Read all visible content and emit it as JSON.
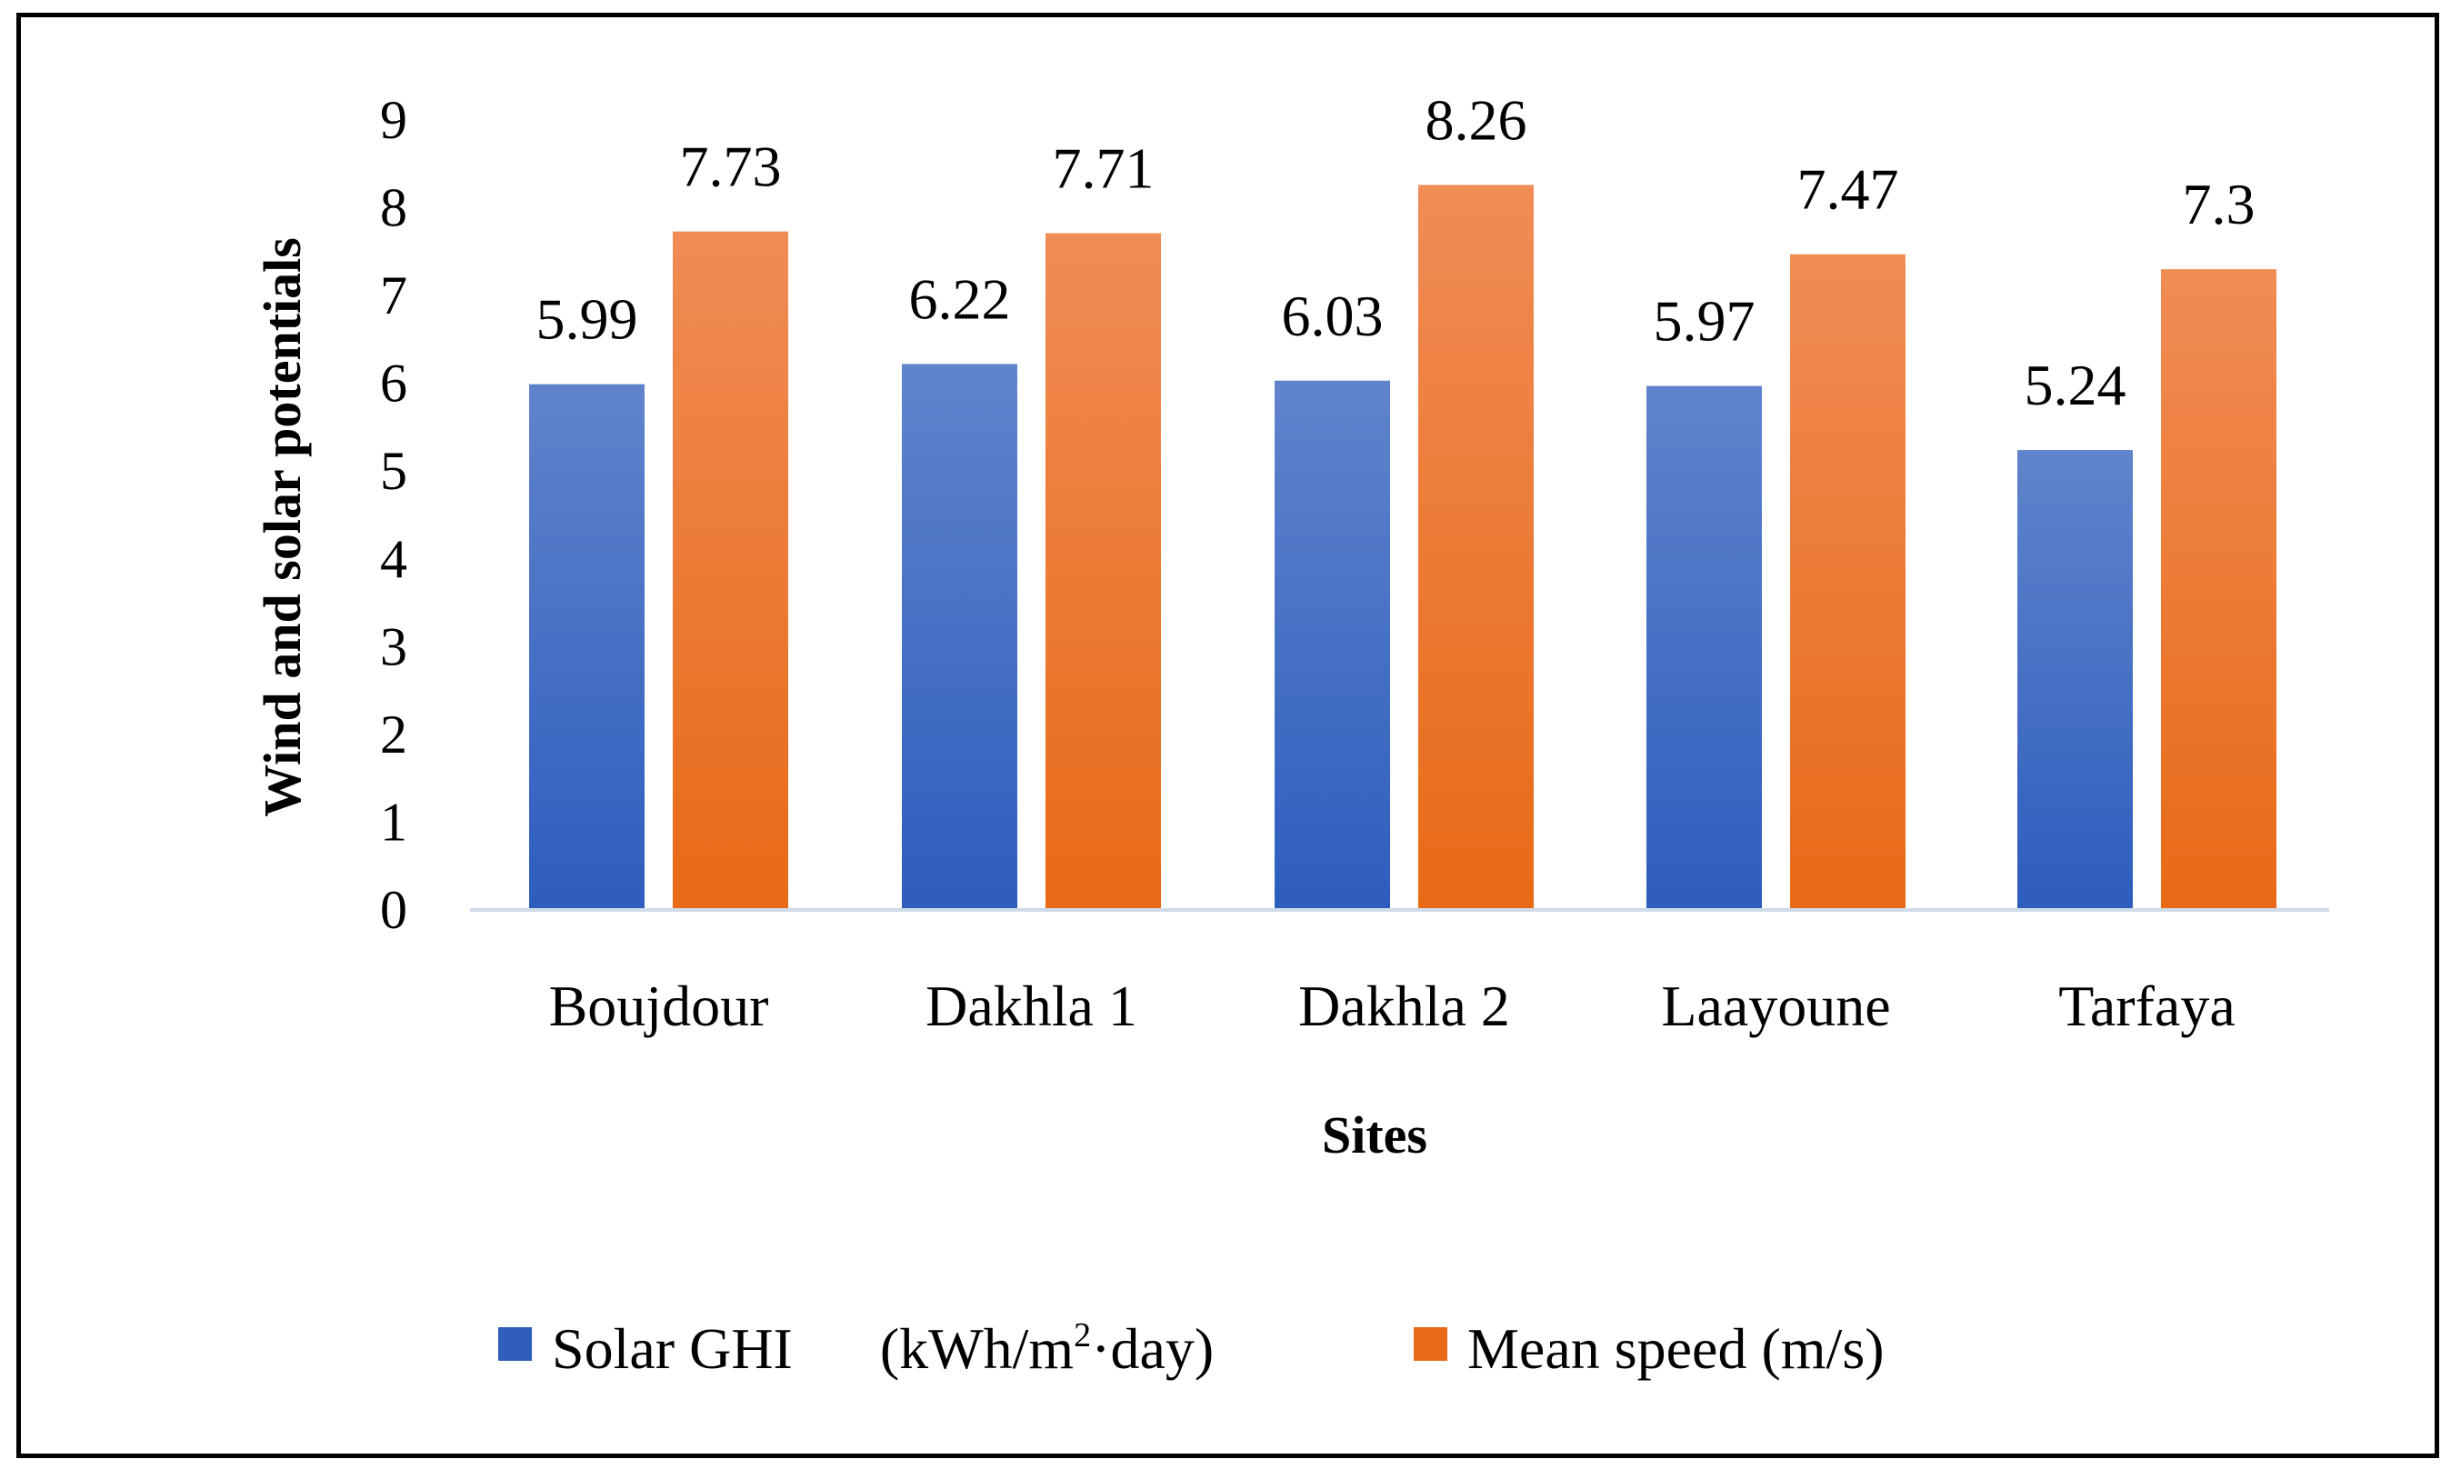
{
  "chart_data": {
    "type": "bar",
    "title": "",
    "xlabel": "Sites",
    "ylabel": "Wind and solar potentials",
    "ylim": [
      0,
      9
    ],
    "yticks": [
      "0",
      "1",
      "2",
      "3",
      "4",
      "5",
      "6",
      "7",
      "8",
      "9"
    ],
    "grid": false,
    "legend_position": "bottom",
    "categories": [
      "Boujdour",
      "Dakhla 1",
      "Dakhla 2",
      "Laayoune",
      "Tarfaya"
    ],
    "series": [
      {
        "name": "Solar GHI    (kWh/m²·day)",
        "legend_parts": {
          "main": "Solar GHI",
          "unit_pre": "(kWh/m",
          "sup": "2",
          "unit_post": "·day)"
        },
        "values": [
          5.99,
          6.22,
          6.03,
          5.97,
          5.24
        ],
        "labels": [
          "5.99",
          "6.22",
          "6.03",
          "5.97",
          "5.24"
        ],
        "color_top": "#6084CC",
        "color_bottom": "#2D5DBD"
      },
      {
        "name": "Mean speed (m/s)",
        "values": [
          7.73,
          7.71,
          8.26,
          7.47,
          7.3
        ],
        "labels": [
          "7.73",
          "7.71",
          "8.26",
          "7.47",
          "7.3"
        ],
        "color_top": "#F08C55",
        "color_bottom": "#E86A16"
      }
    ],
    "axis_color": "#D0DBE9"
  }
}
